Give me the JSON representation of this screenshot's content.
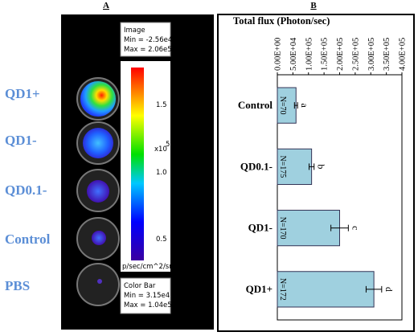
{
  "panel_a": {
    "label": "A",
    "rows": [
      "QD1+",
      "QD1-",
      "QD0.1-",
      "Control",
      "PBS"
    ],
    "image_box": [
      "Image",
      "Min = -2.56e4",
      "Max = 2.06e5"
    ],
    "colorbar_ticks": [
      "1.5",
      "1.0",
      "0.5"
    ],
    "colorbar_scale": "x10",
    "colorbar_exponent": "5",
    "colorbar_unit": "p/sec/cm^2/sr",
    "colorbar_box": [
      "Color Bar",
      "Min = 3.15e4",
      "Max = 1.04e5"
    ]
  },
  "chart_data": {
    "type": "bar",
    "orientation": "horizontal",
    "label": "B",
    "title": "Total flux (Photon/sec)",
    "categories": [
      "Control",
      "QD0.1-",
      "QD1-",
      "QD1+"
    ],
    "values": [
      60000,
      110000,
      200000,
      310000
    ],
    "errors": [
      5000,
      8000,
      28000,
      25000
    ],
    "bar_labels": [
      "N=70",
      "N=175",
      "N=170",
      "N=172"
    ],
    "significance": [
      "a",
      "b",
      "c",
      "d"
    ],
    "color": "#9fd0df",
    "xlim": [
      0,
      400000
    ],
    "xticks": [
      {
        "value": 0,
        "label": "0.00E+00"
      },
      {
        "value": 50000,
        "label": "5.00E+04"
      },
      {
        "value": 100000,
        "label": "1.00E+05"
      },
      {
        "value": 150000,
        "label": "1.50E+05"
      },
      {
        "value": 200000,
        "label": "2.00E+05"
      },
      {
        "value": 250000,
        "label": "2.50E+05"
      },
      {
        "value": 300000,
        "label": "3.00E+05"
      },
      {
        "value": 350000,
        "label": "3.50E+05"
      },
      {
        "value": 400000,
        "label": "4.00E+05"
      }
    ]
  }
}
